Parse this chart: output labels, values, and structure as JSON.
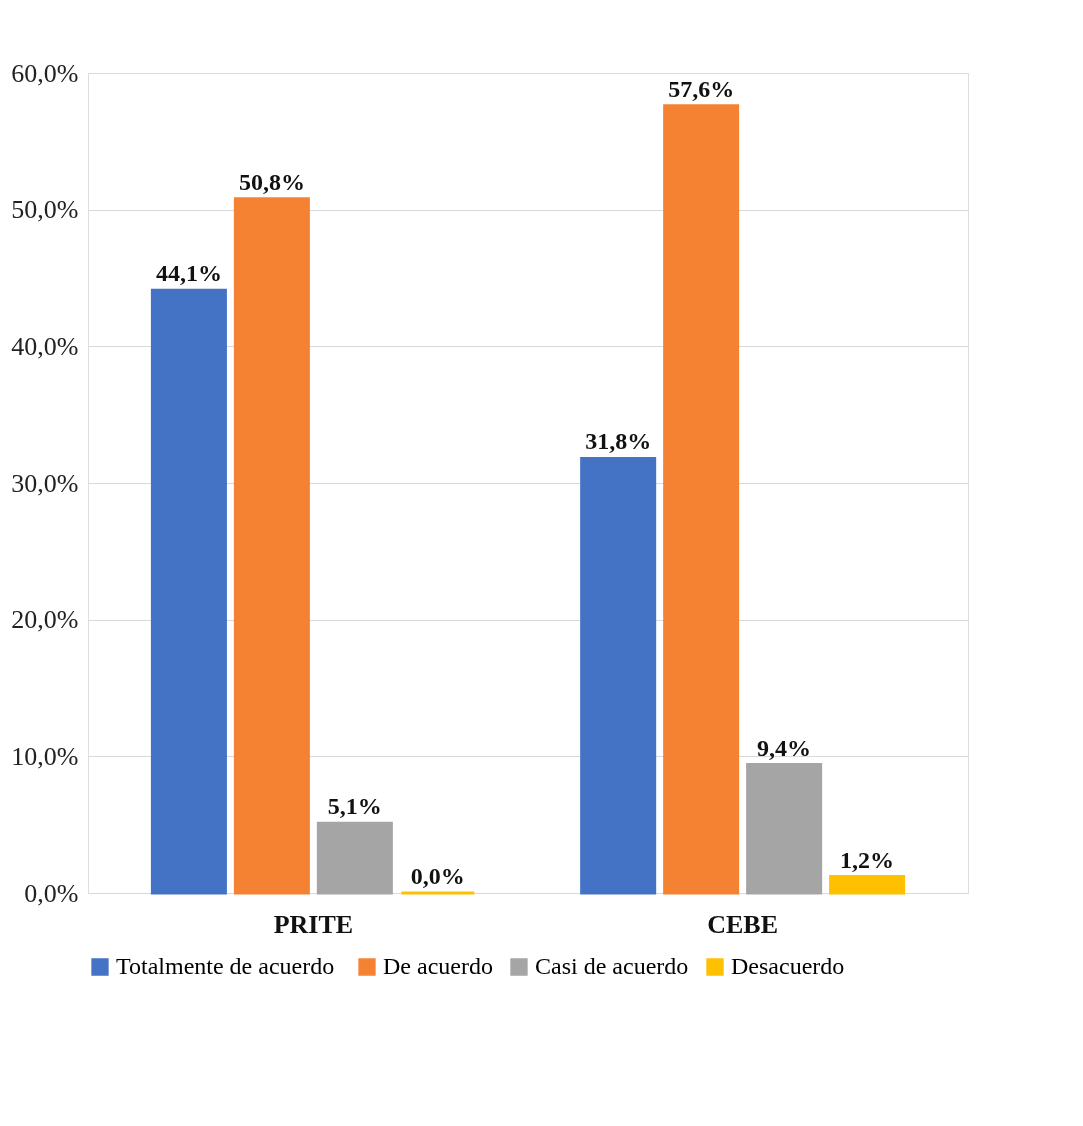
{
  "chart_data": {
    "type": "bar",
    "categories": [
      "PRITE",
      "CEBE"
    ],
    "series": [
      {
        "name": "Totalmente  de acuerdo",
        "color": "#4472c4",
        "values": [
          44.1,
          31.8
        ],
        "value_labels": [
          "44,1%",
          "31,8%"
        ]
      },
      {
        "name": "De acuerdo",
        "color": "#f58233",
        "values": [
          50.8,
          57.6
        ],
        "value_labels": [
          "50,8%",
          "57,6%"
        ]
      },
      {
        "name": "Casi de acuerdo",
        "color": "#a5a5a5",
        "values": [
          5.1,
          9.4
        ],
        "value_labels": [
          "5,1%",
          "9,4%"
        ]
      },
      {
        "name": "Desacuerdo",
        "color": "#ffc000",
        "values": [
          0.0,
          1.2
        ],
        "value_labels": [
          "0,0%",
          "1,2%"
        ]
      }
    ],
    "ylim": [
      0,
      60
    ],
    "yticks": [
      {
        "value": 0,
        "label": "0,0%"
      },
      {
        "value": 10,
        "label": "10,0%"
      },
      {
        "value": 20,
        "label": "20,0%"
      },
      {
        "value": 30,
        "label": "30,0%"
      },
      {
        "value": 40,
        "label": "40,0%"
      },
      {
        "value": 50,
        "label": "50,0%"
      },
      {
        "value": 60,
        "label": "60,0%"
      }
    ],
    "grid": "y",
    "legend": "bottom"
  }
}
